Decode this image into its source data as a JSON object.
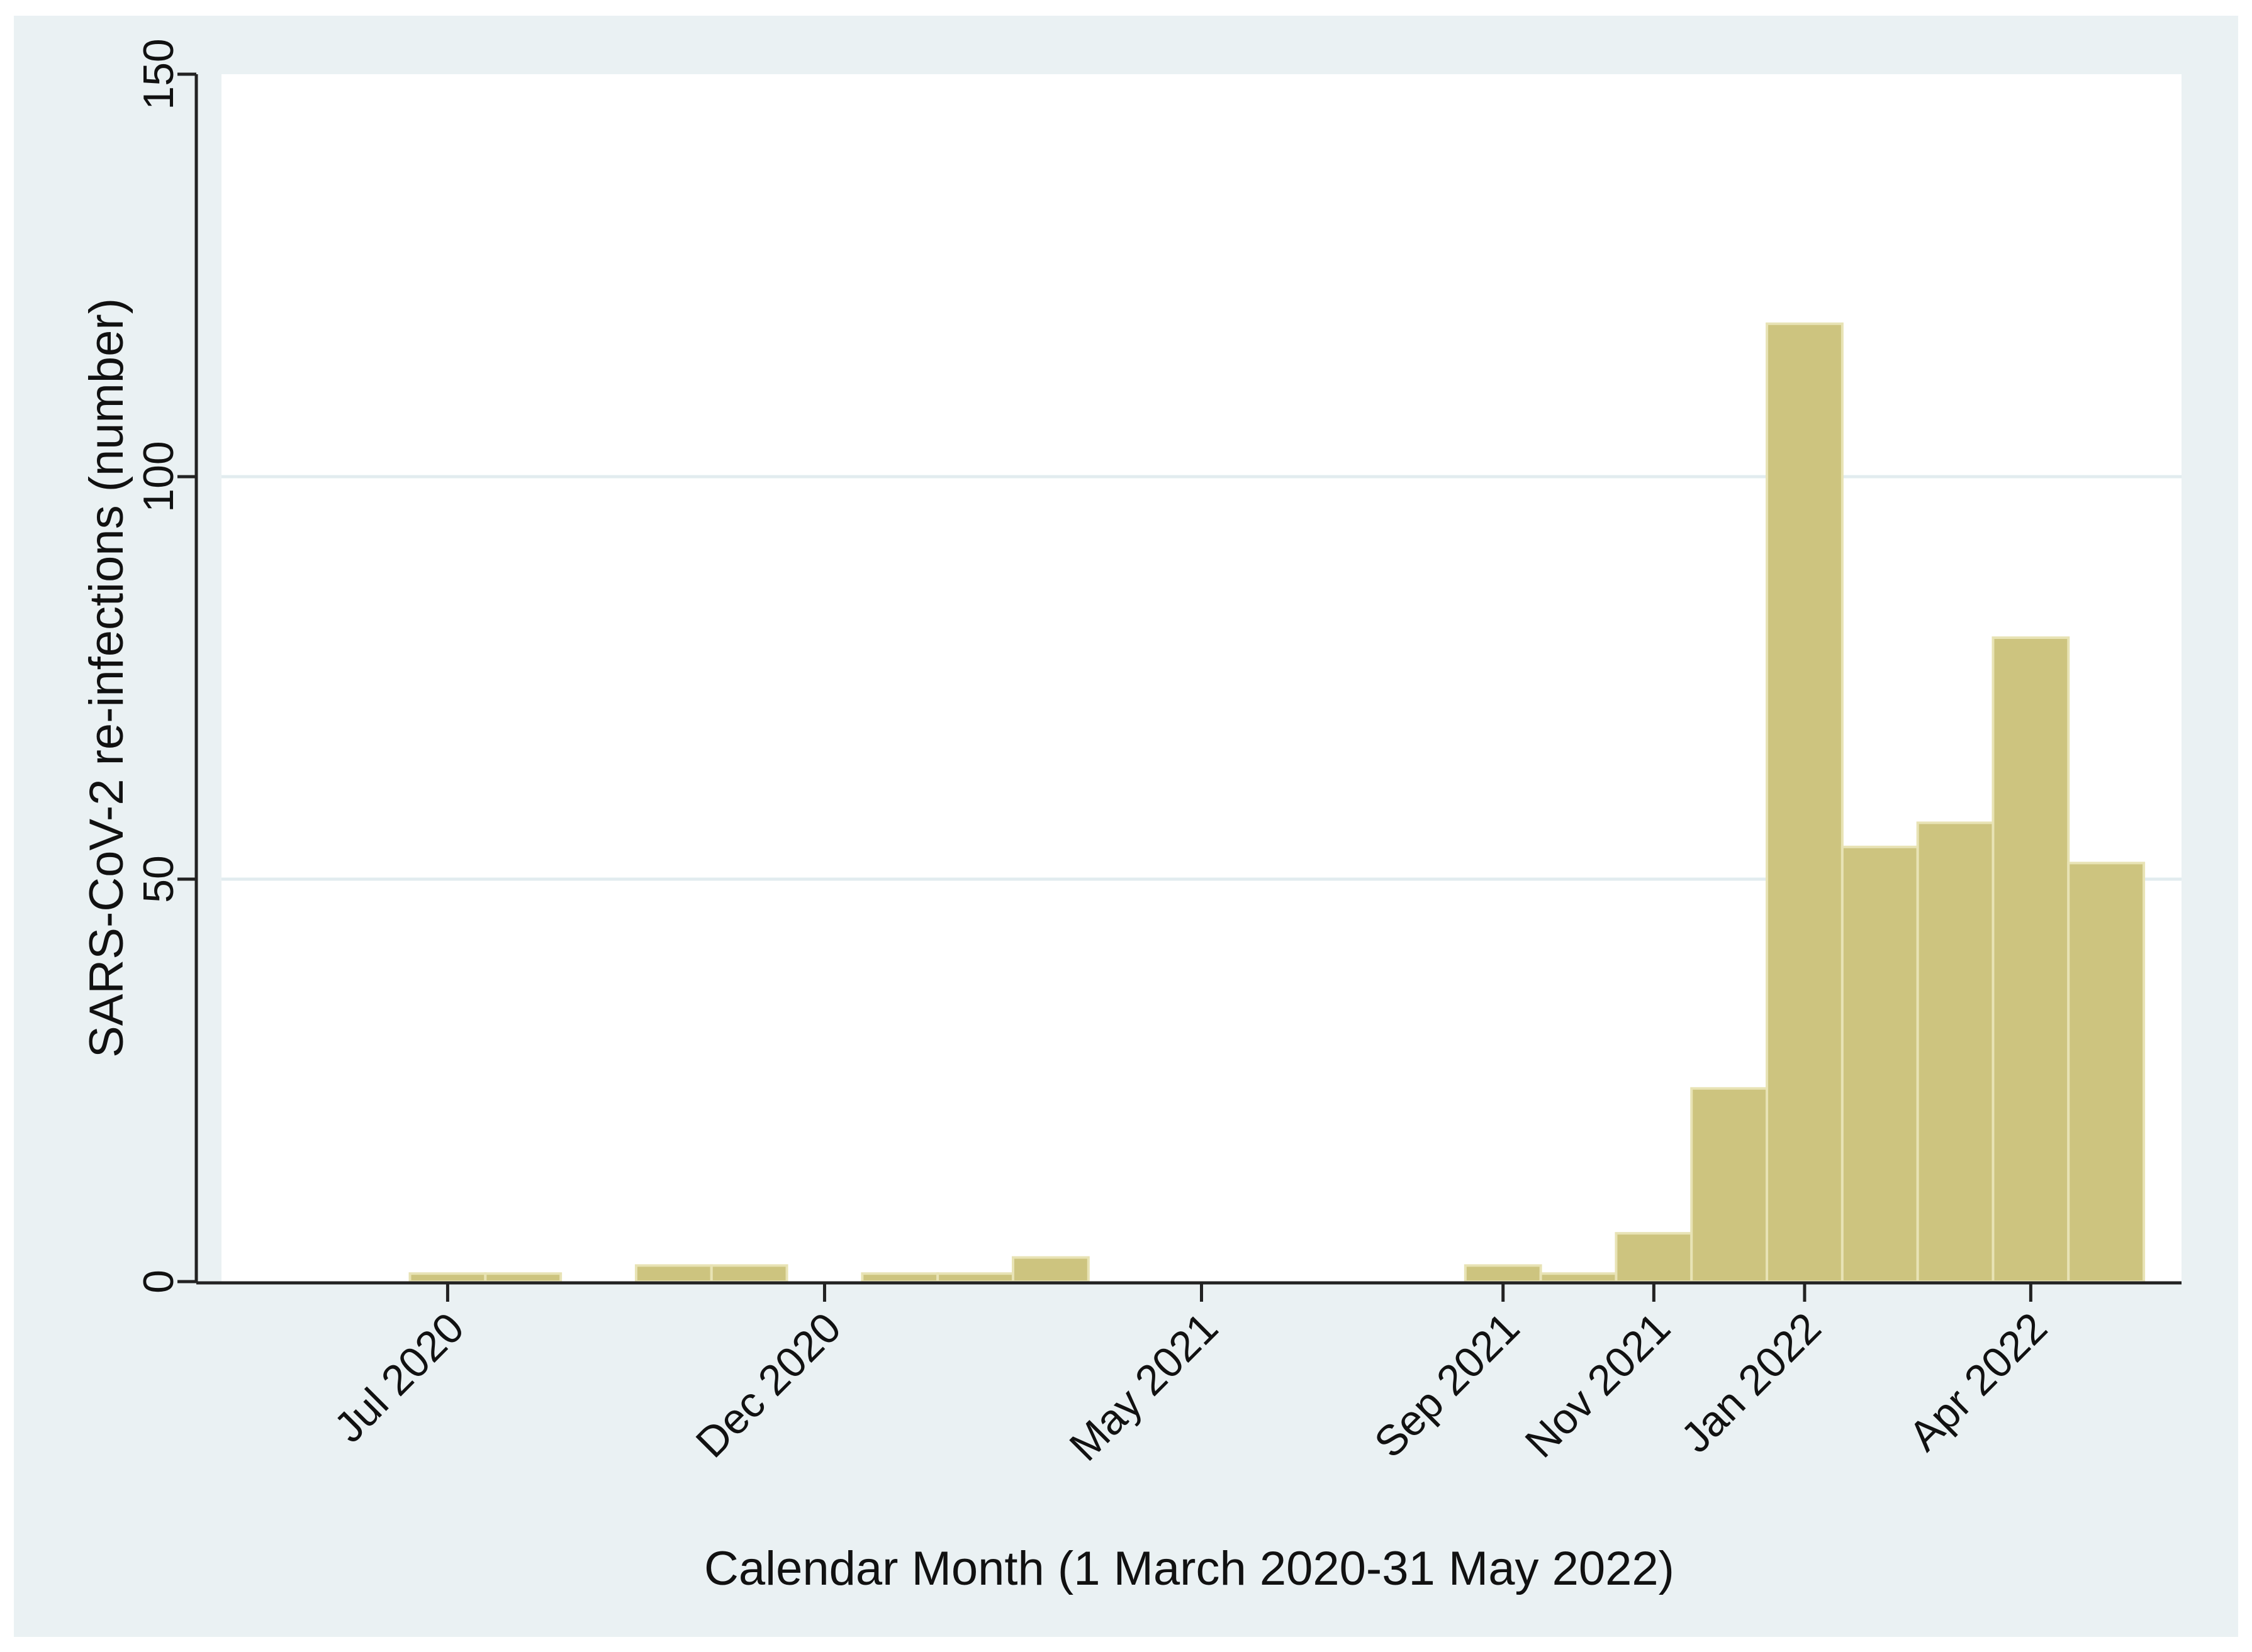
{
  "chart_data": {
    "type": "bar",
    "xlabel": "Calendar Month (1 March 2020-31 May 2022)",
    "ylabel": "SARS-CoV-2 re-infections (number)",
    "ylim": [
      0,
      150
    ],
    "yticks": [
      0,
      50,
      100,
      150
    ],
    "xlim": [
      "2020-04",
      "2022-06"
    ],
    "xticks": [
      {
        "month": "2020-07",
        "label": "Jul 2020"
      },
      {
        "month": "2020-12",
        "label": "Dec 2020"
      },
      {
        "month": "2021-05",
        "label": "May 2021"
      },
      {
        "month": "2021-09",
        "label": "Sep 2021"
      },
      {
        "month": "2021-11",
        "label": "Nov 2021"
      },
      {
        "month": "2022-01",
        "label": "Jan 2022"
      },
      {
        "month": "2022-04",
        "label": "Apr 2022"
      }
    ],
    "categories": [
      "2020-07",
      "2020-08",
      "2020-10",
      "2020-11",
      "2021-01",
      "2021-02",
      "2021-03",
      "2021-09",
      "2021-10",
      "2021-11",
      "2021-12",
      "2022-01",
      "2022-02",
      "2022-03",
      "2022-04",
      "2022-05"
    ],
    "values": [
      1,
      1,
      2,
      2,
      1,
      1,
      3,
      2,
      1,
      6,
      24,
      119,
      54,
      57,
      80,
      52
    ],
    "grid": true,
    "colors": {
      "bar_fill": "#cdc47f",
      "bar_edge": "#e8e3b5",
      "plot_background": "#ffffff",
      "outer_background": "#eaf1f3",
      "gridline": "#e2ecef",
      "axis": "#222222"
    }
  }
}
